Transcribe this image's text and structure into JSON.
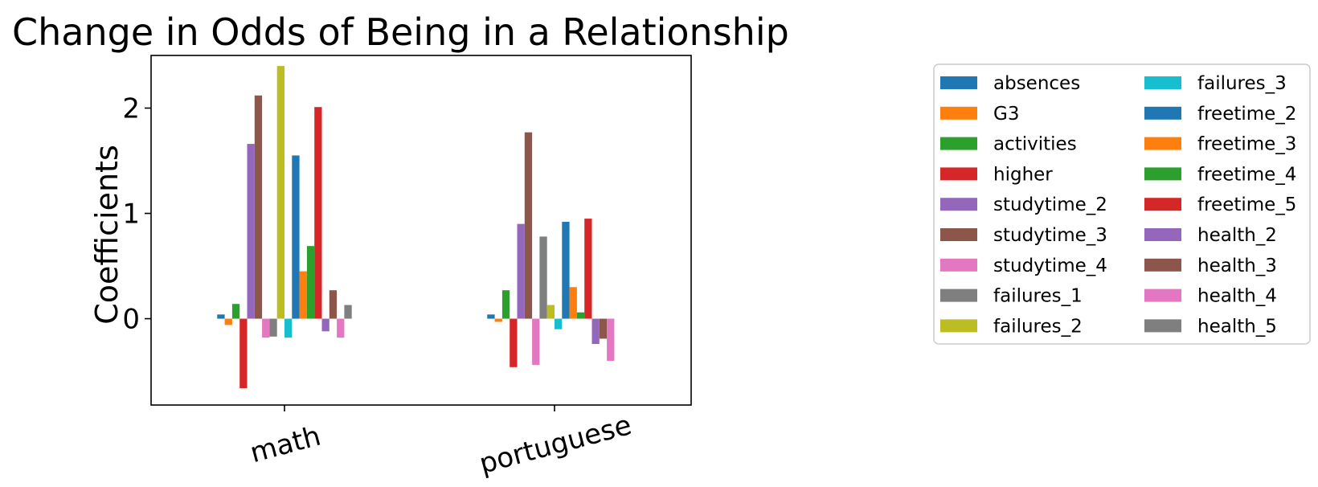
{
  "chart_data": {
    "type": "bar",
    "title": "Change in Odds of Being in a Relationship",
    "ylabel": "Coefficients",
    "xlabel": "",
    "ylim": [
      -0.82,
      2.5
    ],
    "yticks": [
      0,
      1,
      2
    ],
    "grid": false,
    "legend_placement": "right",
    "legend_columns": 2,
    "categories": [
      "math",
      "portuguese"
    ],
    "series": [
      {
        "name": "absences",
        "color": "#1f77b4",
        "values": [
          0.04,
          0.04
        ]
      },
      {
        "name": "G3",
        "color": "#ff7f0e",
        "values": [
          -0.06,
          -0.03
        ]
      },
      {
        "name": "activities",
        "color": "#2ca02c",
        "values": [
          0.14,
          0.27
        ]
      },
      {
        "name": "higher",
        "color": "#d62728",
        "values": [
          -0.66,
          -0.46
        ]
      },
      {
        "name": "studytime_2",
        "color": "#9467bd",
        "values": [
          1.66,
          0.9
        ]
      },
      {
        "name": "studytime_3",
        "color": "#8c564b",
        "values": [
          2.12,
          1.77
        ]
      },
      {
        "name": "studytime_4",
        "color": "#e377c2",
        "values": [
          -0.18,
          -0.44
        ]
      },
      {
        "name": "failures_1",
        "color": "#7f7f7f",
        "values": [
          -0.17,
          0.78
        ]
      },
      {
        "name": "failures_2",
        "color": "#bcbd22",
        "values": [
          2.4,
          0.13
        ]
      },
      {
        "name": "failures_3",
        "color": "#17becf",
        "values": [
          -0.18,
          -0.1
        ]
      },
      {
        "name": "freetime_2",
        "color": "#1f77b4",
        "values": [
          1.55,
          0.92
        ]
      },
      {
        "name": "freetime_3",
        "color": "#ff7f0e",
        "values": [
          0.45,
          0.3
        ]
      },
      {
        "name": "freetime_4",
        "color": "#2ca02c",
        "values": [
          0.69,
          0.06
        ]
      },
      {
        "name": "freetime_5",
        "color": "#d62728",
        "values": [
          2.01,
          0.95
        ]
      },
      {
        "name": "health_2",
        "color": "#9467bd",
        "values": [
          -0.12,
          -0.24
        ]
      },
      {
        "name": "health_3",
        "color": "#8c564b",
        "values": [
          0.27,
          -0.19
        ]
      },
      {
        "name": "health_4",
        "color": "#e377c2",
        "values": [
          -0.18,
          -0.4
        ]
      },
      {
        "name": "health_5",
        "color": "#7f7f7f",
        "values": [
          0.13,
          0.0
        ]
      }
    ]
  }
}
